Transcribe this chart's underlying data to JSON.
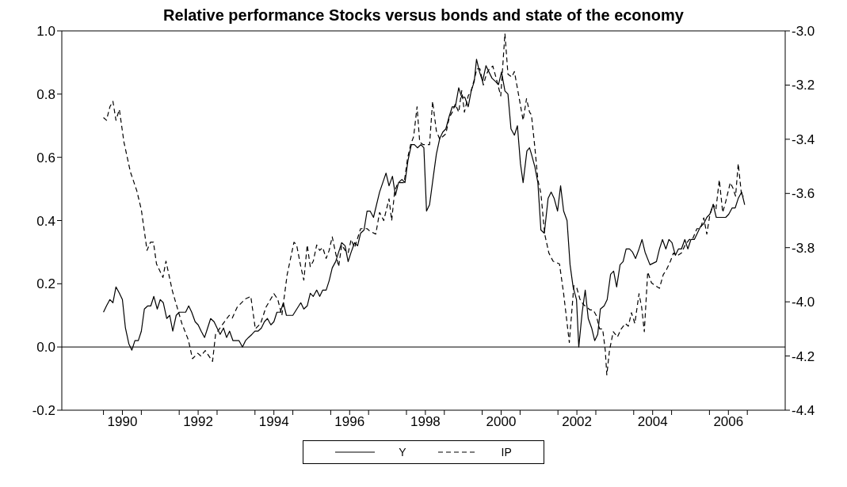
{
  "chart_data": {
    "type": "line",
    "title": "Relative performance Stocks versus bonds and state of the economy",
    "xlim": [
      1988.9,
      2008.0
    ],
    "xticks": [
      {
        "value": 1990,
        "label": null
      },
      {
        "value": 1990.5,
        "label": "1990"
      },
      {
        "value": 1991,
        "label": null
      },
      {
        "value": 1992,
        "label": null
      },
      {
        "value": 1992.5,
        "label": "1992"
      },
      {
        "value": 1993,
        "label": null
      },
      {
        "value": 1994,
        "label": null
      },
      {
        "value": 1994.5,
        "label": "1994"
      },
      {
        "value": 1995,
        "label": null
      },
      {
        "value": 1996,
        "label": null
      },
      {
        "value": 1996.5,
        "label": "1996"
      },
      {
        "value": 1997,
        "label": null
      },
      {
        "value": 1998,
        "label": null
      },
      {
        "value": 1998.5,
        "label": "1998"
      },
      {
        "value": 1999,
        "label": null
      },
      {
        "value": 2000,
        "label": null
      },
      {
        "value": 2000.5,
        "label": "2000"
      },
      {
        "value": 2001,
        "label": null
      },
      {
        "value": 2002,
        "label": null
      },
      {
        "value": 2002.5,
        "label": "2002"
      },
      {
        "value": 2003,
        "label": null
      },
      {
        "value": 2004,
        "label": null
      },
      {
        "value": 2004.5,
        "label": "2004"
      },
      {
        "value": 2005,
        "label": null
      },
      {
        "value": 2006,
        "label": null
      },
      {
        "value": 2006.5,
        "label": "2006"
      },
      {
        "value": 2007,
        "label": null
      }
    ],
    "ylim": [
      -0.2,
      1.0
    ],
    "yticks": [
      -0.2,
      {
        "value": 0,
        "label": "0.0"
      },
      0.2,
      0.4,
      0.6,
      0.8,
      {
        "value": 1,
        "label": "1.0"
      }
    ],
    "y2lim": [
      -4.4,
      -3.0
    ],
    "y2ticks": [
      -4.4,
      -4.2,
      {
        "value": -4,
        "label": "-4.0"
      },
      -3.8,
      -3.6,
      -3.4,
      -3.2,
      {
        "value": -3,
        "label": "-3.0"
      }
    ],
    "ref_lines": [
      {
        "axis": "y",
        "value": 0,
        "color": "#000000"
      }
    ],
    "legend": "bottom",
    "marker": "none",
    "series": [
      {
        "name": "Y",
        "color": "#000000",
        "line_style": "solid",
        "axis": "y",
        "x": [
          1990.0,
          1990.08,
          1990.17,
          1990.25,
          1990.33,
          1990.42,
          1990.5,
          1990.58,
          1990.67,
          1990.75,
          1990.83,
          1990.92,
          1991.0,
          1991.08,
          1991.17,
          1991.25,
          1991.33,
          1991.42,
          1991.5,
          1991.58,
          1991.67,
          1991.75,
          1991.83,
          1991.92,
          1992.0,
          1992.08,
          1992.17,
          1992.25,
          1992.33,
          1992.42,
          1992.5,
          1992.58,
          1992.67,
          1992.75,
          1992.83,
          1992.92,
          1993.0,
          1993.08,
          1993.17,
          1993.25,
          1993.33,
          1993.42,
          1993.5,
          1993.58,
          1993.67,
          1993.75,
          1993.83,
          1993.92,
          1994.0,
          1994.08,
          1994.17,
          1994.25,
          1994.33,
          1994.42,
          1994.5,
          1994.58,
          1994.67,
          1994.75,
          1994.83,
          1994.92,
          1995.0,
          1995.21,
          1995.29,
          1995.38,
          1995.46,
          1995.54,
          1995.63,
          1995.71,
          1995.79,
          1995.88,
          1995.96,
          1996.04,
          1996.13,
          1996.21,
          1996.29,
          1996.38,
          1996.46,
          1996.54,
          1996.63,
          1996.71,
          1996.79,
          1996.88,
          1996.96,
          1997.04,
          1997.13,
          1997.29,
          1997.46,
          1997.54,
          1997.63,
          1997.71,
          1997.79,
          1997.88,
          1997.96,
          1998.04,
          1998.13,
          1998.21,
          1998.29,
          1998.38,
          1998.46,
          1998.53,
          1998.61,
          1998.71,
          1998.79,
          1998.88,
          1998.96,
          1999.04,
          1999.13,
          1999.21,
          1999.29,
          1999.38,
          1999.46,
          1999.54,
          1999.63,
          1999.71,
          1999.79,
          1999.85,
          1999.93,
          2000.01,
          2000.1,
          2000.18,
          2000.26,
          2000.35,
          2000.43,
          2000.51,
          2000.6,
          2000.68,
          2000.76,
          2000.85,
          2000.93,
          2001.01,
          2001.08,
          2001.18,
          2001.25,
          2001.3,
          2001.39,
          2001.47,
          2001.55,
          2001.64,
          2001.74,
          2001.82,
          2001.9,
          2001.99,
          2002.07,
          2002.15,
          2002.24,
          2002.32,
          2002.4,
          2002.49,
          2002.55,
          2002.64,
          2002.72,
          2002.8,
          2002.89,
          2002.97,
          2003.05,
          2003.12,
          2003.22,
          2003.3,
          2003.39,
          2003.47,
          2003.55,
          2003.64,
          2003.72,
          2003.8,
          2003.89,
          2003.97,
          2004.05,
          2004.14,
          2004.22,
          2004.3,
          2004.43,
          2004.6,
          2004.68,
          2004.76,
          2004.85,
          2004.93,
          2005.01,
          2005.1,
          2005.18,
          2005.26,
          2005.35,
          2005.43,
          2005.51,
          2005.6,
          2005.68,
          2005.76,
          2005.85,
          2005.93,
          2006.01,
          2006.1,
          2006.18,
          2006.26,
          2006.35,
          2006.43,
          2006.51,
          2006.6,
          2006.68,
          2006.76,
          2006.85,
          2006.93
        ],
        "values": [
          0.11,
          0.13,
          0.15,
          0.14,
          0.19,
          0.17,
          0.15,
          0.06,
          0.01,
          -0.01,
          0.02,
          0.02,
          0.05,
          0.12,
          0.13,
          0.13,
          0.16,
          0.12,
          0.15,
          0.14,
          0.09,
          0.1,
          0.05,
          0.1,
          0.11,
          0.11,
          0.11,
          0.13,
          0.11,
          0.08,
          0.07,
          0.05,
          0.03,
          0.06,
          0.09,
          0.08,
          0.06,
          0.04,
          0.06,
          0.03,
          0.05,
          0.02,
          0.02,
          0.02,
          0.0,
          0.02,
          0.03,
          0.04,
          0.05,
          0.05,
          0.06,
          0.08,
          0.09,
          0.07,
          0.08,
          0.11,
          0.11,
          0.14,
          0.1,
          0.1,
          0.1,
          0.14,
          0.12,
          0.13,
          0.17,
          0.16,
          0.18,
          0.16,
          0.18,
          0.18,
          0.21,
          0.25,
          0.27,
          0.3,
          0.33,
          0.32,
          0.27,
          0.3,
          0.33,
          0.32,
          0.36,
          0.37,
          0.43,
          0.43,
          0.41,
          0.49,
          0.55,
          0.51,
          0.54,
          0.48,
          0.52,
          0.53,
          0.52,
          0.59,
          0.64,
          0.64,
          0.63,
          0.64,
          0.63,
          0.43,
          0.45,
          0.54,
          0.61,
          0.66,
          0.68,
          0.69,
          0.73,
          0.76,
          0.76,
          0.82,
          0.79,
          0.79,
          0.76,
          0.81,
          0.84,
          0.91,
          0.87,
          0.84,
          0.89,
          0.87,
          0.85,
          0.84,
          0.83,
          0.87,
          0.81,
          0.8,
          0.69,
          0.67,
          0.7,
          0.58,
          0.52,
          0.62,
          0.63,
          0.61,
          0.57,
          0.52,
          0.37,
          0.36,
          0.47,
          0.49,
          0.47,
          0.43,
          0.51,
          0.43,
          0.4,
          0.26,
          0.19,
          0.15,
          0.0,
          0.11,
          0.18,
          0.09,
          0.06,
          0.02,
          0.04,
          0.12,
          0.13,
          0.15,
          0.23,
          0.24,
          0.19,
          0.26,
          0.27,
          0.31,
          0.31,
          0.3,
          0.28,
          0.31,
          0.34,
          0.3,
          0.26,
          0.27,
          0.31,
          0.34,
          0.31,
          0.34,
          0.33,
          0.29,
          0.31,
          0.31,
          0.34,
          0.31,
          0.34,
          0.34,
          0.36,
          0.38,
          0.39,
          0.41,
          0.42,
          0.45,
          0.41,
          0.41,
          0.41,
          0.41,
          0.42,
          0.44,
          0.44,
          0.47,
          0.49,
          0.45
        ]
      },
      {
        "name": "IP",
        "color": "#000000",
        "line_style": "dashed",
        "axis": "y2",
        "x": [
          1990.0,
          1990.08,
          1990.17,
          1990.25,
          1990.33,
          1990.42,
          1990.54,
          1990.71,
          1990.88,
          1991.0,
          1991.15,
          1991.24,
          1991.32,
          1991.4,
          1991.57,
          1991.65,
          1991.82,
          1992.07,
          1992.24,
          1992.35,
          1992.49,
          1992.57,
          1992.69,
          1992.88,
          1992.96,
          1993.11,
          1993.32,
          1993.4,
          1993.53,
          1993.74,
          1993.89,
          1994.01,
          1994.15,
          1994.29,
          1994.5,
          1994.6,
          1994.71,
          1994.85,
          1995.03,
          1995.1,
          1995.21,
          1995.29,
          1995.38,
          1995.46,
          1995.54,
          1995.63,
          1995.71,
          1995.79,
          1995.88,
          1995.96,
          1996.04,
          1996.13,
          1996.21,
          1996.29,
          1996.38,
          1996.46,
          1996.54,
          1996.63,
          1996.79,
          1996.96,
          1997.04,
          1997.19,
          1997.29,
          1997.4,
          1997.54,
          1997.61,
          1997.69,
          1997.78,
          1997.94,
          1998.03,
          1998.11,
          1998.19,
          1998.28,
          1998.35,
          1998.44,
          1998.61,
          1998.69,
          1998.79,
          1998.88,
          1999.04,
          1999.13,
          1999.21,
          1999.29,
          1999.38,
          1999.46,
          1999.53,
          1999.63,
          1999.71,
          1999.79,
          1999.86,
          1999.94,
          2000.03,
          2000.11,
          2000.19,
          2000.28,
          2000.36,
          2000.49,
          2000.6,
          2000.68,
          2000.78,
          2000.85,
          2000.94,
          2001.08,
          2001.17,
          2001.25,
          2001.3,
          2001.39,
          2001.47,
          2001.55,
          2001.65,
          2001.76,
          2001.87,
          2002.04,
          2002.15,
          2002.25,
          2002.3,
          2002.42,
          2002.5,
          2002.58,
          2002.67,
          2002.76,
          2002.85,
          2002.93,
          2003.01,
          2003.1,
          2003.18,
          2003.25,
          2003.29,
          2003.36,
          2003.46,
          2003.57,
          2003.67,
          2003.78,
          2003.86,
          2003.94,
          2004.03,
          2004.14,
          2004.21,
          2004.28,
          2004.37,
          2004.47,
          2004.57,
          2004.68,
          2004.78,
          2004.87,
          2004.97,
          2005.05,
          2005.15,
          2005.26,
          2005.36,
          2005.47,
          2005.55,
          2005.67,
          2005.76,
          2005.85,
          2005.93,
          2006.01,
          2006.1,
          2006.17,
          2006.26,
          2006.35,
          2006.43,
          2006.55,
          2006.62,
          2006.69,
          2006.76,
          2006.85,
          2006.9
        ],
        "values": [
          -3.32,
          -3.33,
          -3.28,
          -3.26,
          -3.33,
          -3.29,
          -3.41,
          -3.52,
          -3.59,
          -3.66,
          -3.81,
          -3.78,
          -3.78,
          -3.86,
          -3.91,
          -3.85,
          -3.96,
          -4.08,
          -4.14,
          -4.21,
          -4.19,
          -4.2,
          -4.18,
          -4.22,
          -4.12,
          -4.09,
          -4.05,
          -4.06,
          -4.02,
          -3.99,
          -3.98,
          -4.1,
          -4.08,
          -4.02,
          -3.97,
          -3.99,
          -4.05,
          -3.9,
          -3.78,
          -3.79,
          -3.87,
          -3.92,
          -3.79,
          -3.87,
          -3.85,
          -3.79,
          -3.81,
          -3.8,
          -3.84,
          -3.81,
          -3.76,
          -3.82,
          -3.87,
          -3.79,
          -3.81,
          -3.82,
          -3.77,
          -3.8,
          -3.73,
          -3.73,
          -3.74,
          -3.75,
          -3.67,
          -3.7,
          -3.62,
          -3.7,
          -3.59,
          -3.56,
          -3.56,
          -3.47,
          -3.42,
          -3.39,
          -3.28,
          -3.41,
          -3.42,
          -3.42,
          -3.26,
          -3.37,
          -3.4,
          -3.38,
          -3.32,
          -3.3,
          -3.27,
          -3.3,
          -3.22,
          -3.3,
          -3.24,
          -3.22,
          -3.18,
          -3.14,
          -3.14,
          -3.2,
          -3.16,
          -3.14,
          -3.13,
          -3.17,
          -3.24,
          -3.01,
          -3.16,
          -3.17,
          -3.15,
          -3.22,
          -3.33,
          -3.25,
          -3.3,
          -3.31,
          -3.43,
          -3.55,
          -3.6,
          -3.75,
          -3.82,
          -3.85,
          -3.86,
          -3.97,
          -4.09,
          -4.15,
          -3.94,
          -3.95,
          -3.99,
          -4.01,
          -4.02,
          -4.03,
          -4.03,
          -4.05,
          -4.1,
          -4.1,
          -4.18,
          -4.27,
          -4.18,
          -4.11,
          -4.13,
          -4.1,
          -4.08,
          -4.09,
          -4.04,
          -4.08,
          -3.97,
          -4.02,
          -4.11,
          -3.89,
          -3.93,
          -3.94,
          -3.95,
          -3.9,
          -3.88,
          -3.85,
          -3.82,
          -3.83,
          -3.82,
          -3.79,
          -3.77,
          -3.77,
          -3.73,
          -3.73,
          -3.69,
          -3.75,
          -3.68,
          -3.64,
          -3.66,
          -3.55,
          -3.67,
          -3.63,
          -3.56,
          -3.58,
          -3.61,
          -3.49,
          -3.61,
          -3.61
        ]
      }
    ]
  }
}
